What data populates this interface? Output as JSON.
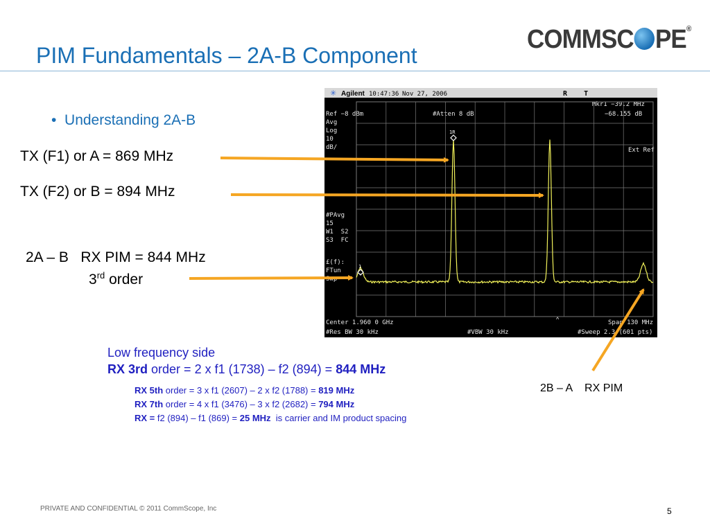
{
  "slide": {
    "title": "PIM Fundamentals – 2A-B Component",
    "logo_text_left": "COMMSC",
    "logo_text_right": "PE",
    "logo_mark": "®",
    "bullet": "Understanding 2A-B",
    "tx1": "TX (F1) or A = 869 MHz",
    "tx2": "TX (F2) or B = 894 MHz",
    "pim_line1": "2A – B   RX PIM = 844 MHz",
    "pim_order_num": "3",
    "pim_order_sup": "rd",
    "pim_order_word": " order",
    "low_freq_title": "Low frequency side",
    "rx3_prefix": "RX 3rd",
    "rx3_mid": " order = 2 x f1 (1738) – f2 (894) = ",
    "rx3_result": "844 MHz",
    "rx5_prefix": "RX 5th",
    "rx5_mid": " order = 3 x f1 (2607) – 2 x f2 (1788) = ",
    "rx5_result": "819 MHz",
    "rx7_prefix": "RX 7th",
    "rx7_mid": " order = 4 x f1 (3476) – 3 x f2 (2682) = ",
    "rx7_result": "794 MHz",
    "rx_prefix": "RX =",
    "rx_mid": " f2 (894) – f1 (869) = ",
    "rx_result": "25 MHz",
    "rx_suffix": "  is carrier and IM product spacing",
    "right_pim": "2B – A    RX PIM",
    "footer": "PRIVATE AND CONFIDENTIAL © 2011 CommScope, Inc",
    "page_number": "5"
  },
  "analyzer": {
    "brand": "Agilent",
    "time": "10:47:36",
    "date": "Nov 27, 2006",
    "status": "R    T",
    "marker": "Mkr1  −39.2 MHz",
    "marker_level": "−68.155 dB",
    "ref": "Ref −8 dBm",
    "atten": "#Atten 8 dB",
    "left_labels": [
      "Avg",
      "Log",
      "10",
      "dB/"
    ],
    "ext_ref": "Ext Ref",
    "pavg_labels": [
      "#PAvg",
      "15",
      "W1  S2",
      "S3  FC"
    ],
    "ftun_labels": [
      "£(f):",
      "FTun",
      "Swp"
    ],
    "center": "Center 1.960 0 GHz",
    "span": "Span 130 MHz",
    "res_bw": "#Res BW 30 kHz",
    "vbw": "#VBW 30 kHz",
    "sweep": "#Sweep 2.3 (601 pts)",
    "marker_label_peak": "1R",
    "marker_label_pim": "1",
    "trace_color": "#f2f25a",
    "grid_color": "#7a7a7a"
  },
  "colors": {
    "title": "#1a6fb5",
    "formula_text": "#1f1fc0",
    "arrow": "#f5a623"
  }
}
